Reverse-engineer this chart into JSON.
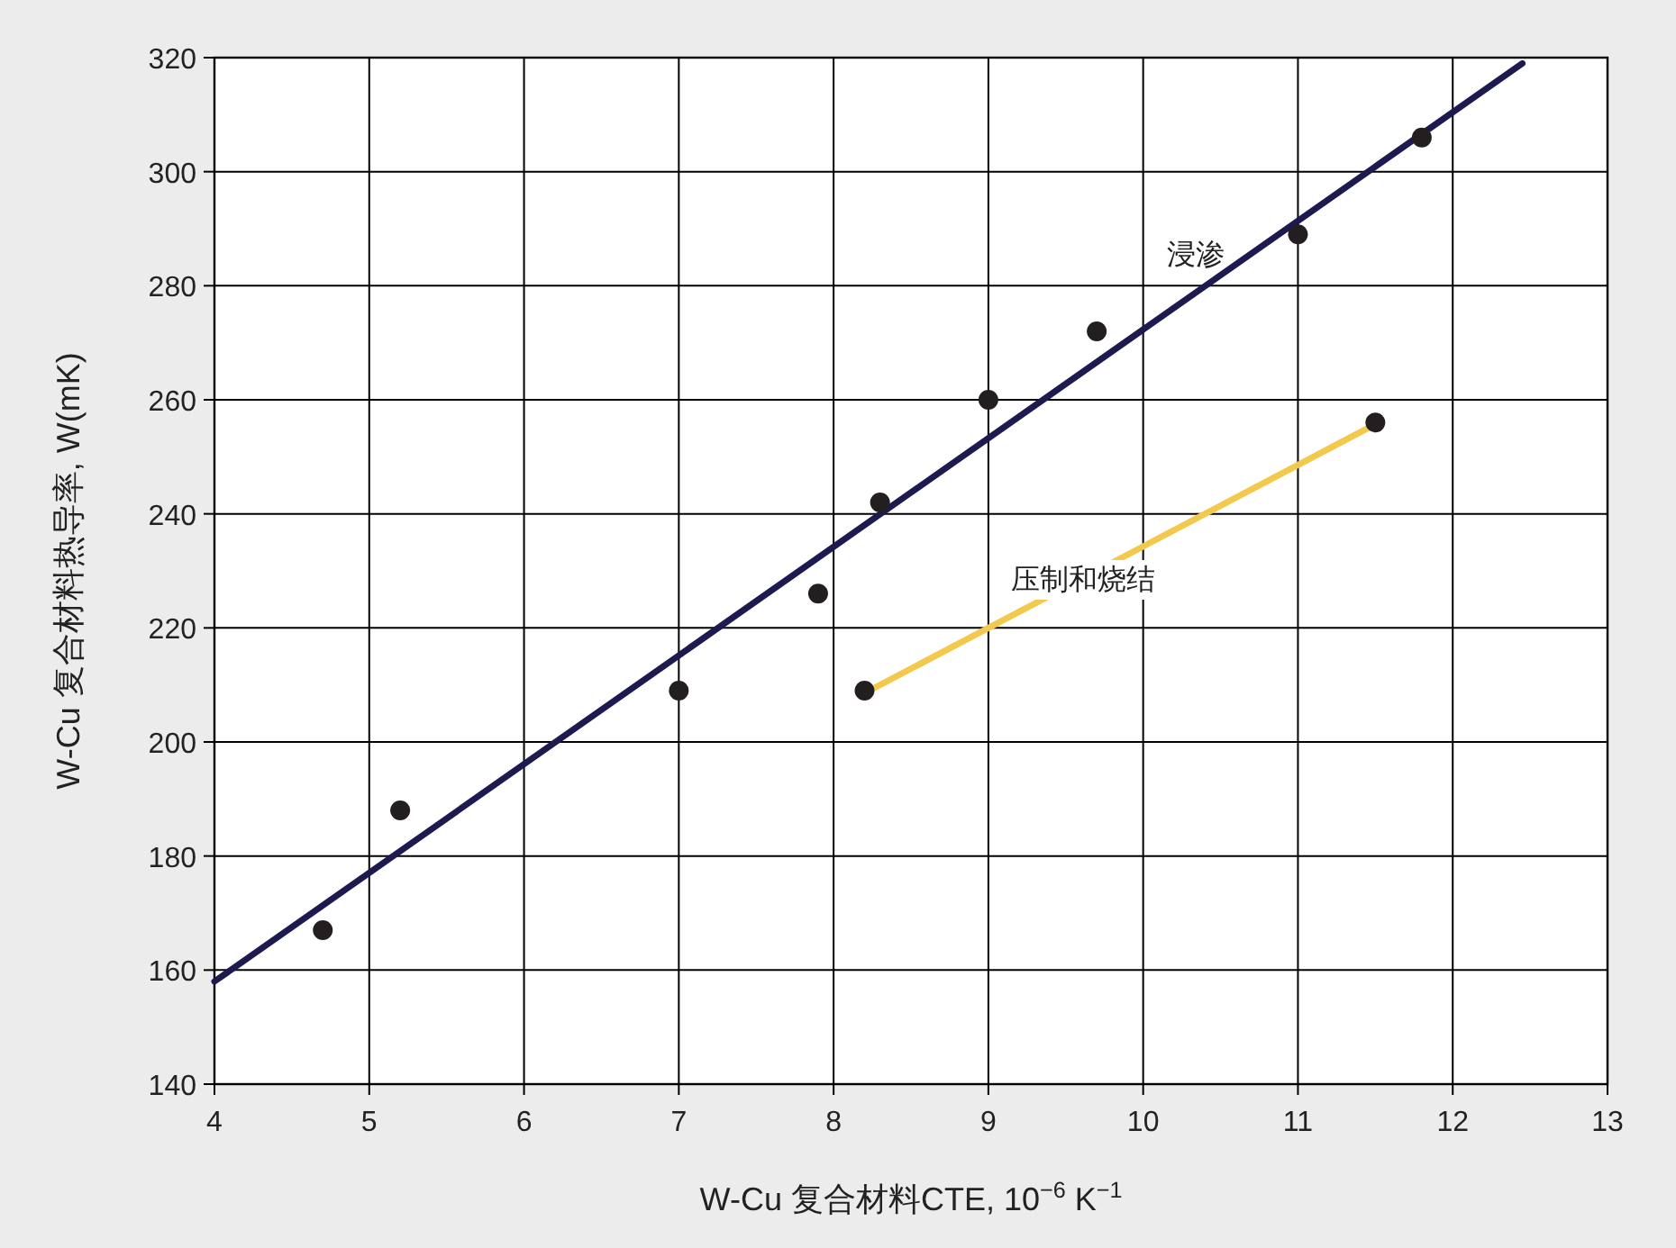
{
  "chart_data": {
    "type": "scatter",
    "xlabel": "W-Cu 复合材料CTE, 10$^{−6}$ K$^{−1}$",
    "ylabel": "W-Cu 复合材料热导率, W(mK)",
    "xlim": [
      4,
      13
    ],
    "ylim": [
      140,
      320
    ],
    "xticks": [
      4,
      5,
      6,
      7,
      8,
      9,
      10,
      11,
      12,
      13
    ],
    "yticks": [
      140,
      160,
      180,
      200,
      220,
      240,
      260,
      280,
      300,
      320
    ],
    "grid": true,
    "series": [
      {
        "marker": "circle",
        "color": "#231f20",
        "x": [
          4.7,
          5.2,
          7.0,
          7.9,
          8.3,
          9.0,
          9.7,
          11.0,
          11.8
        ],
        "values": [
          167,
          188,
          209,
          226,
          242,
          260,
          272,
          289,
          306
        ]
      },
      {
        "type": "line",
        "marker": "none",
        "name": "浸渗",
        "color": "#1d1a4f",
        "x": [
          4.0,
          12.45
        ],
        "values": [
          158,
          319
        ]
      },
      {
        "type": "line",
        "marker": "none",
        "name": "压制和烧结",
        "color": "#f2c94c",
        "x": [
          8.23,
          11.52
        ],
        "values": [
          209,
          256
        ]
      },
      {
        "marker": "circle",
        "color": "#231f20",
        "x": [
          8.2,
          11.5
        ],
        "values": [
          209,
          256
        ]
      }
    ]
  }
}
